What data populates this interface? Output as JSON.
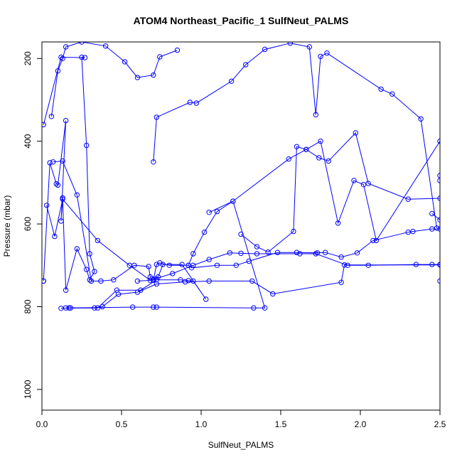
{
  "chart_data": {
    "type": "line",
    "title": "ATOM4 Northeast_Pacific_1 SulfNeut_PALMS",
    "xlabel": "SulfNeut_PALMS",
    "ylabel": "Pressure (mbar)",
    "xlim": [
      0,
      2.5
    ],
    "ylim": [
      1050,
      160
    ],
    "y_reversed": true,
    "grid": false,
    "x_ticks": [
      "0.0",
      "0.5",
      "1.0",
      "1.5",
      "2.0",
      "2.5"
    ],
    "x_tick_values": [
      0,
      0.5,
      1.0,
      1.5,
      2.0,
      2.5
    ],
    "y_ticks": [
      "200",
      "400",
      "600",
      "800",
      "1000"
    ],
    "y_tick_values": [
      200,
      400,
      600,
      800,
      1000
    ],
    "series_color": "#0000ff",
    "marker": "open-circle",
    "series": [
      {
        "x": [
          0.01,
          0.01,
          0.05,
          0.09,
          0.1,
          0.15,
          0.12,
          0.13,
          0.15,
          0.22,
          0.28,
          0.3,
          0.33,
          0.3,
          0.28,
          0.25,
          0.27,
          0.12,
          0.01
        ],
        "y": [
          738,
          738,
          452,
          503,
          506,
          350,
          593,
          537,
          760,
          660,
          710,
          735,
          715,
          672,
          410,
          197,
          198,
          197,
          360
        ]
      },
      {
        "x": [
          0.15,
          0.35,
          0.47,
          0.62,
          0.72,
          0.7,
          0.87,
          0.92,
          0.95,
          1.03,
          0.88,
          0.76,
          0.73,
          0.68,
          0.67,
          0.58,
          0.45,
          0.37,
          0.31,
          0.22,
          0.13,
          0.07
        ],
        "y": [
          803,
          803,
          760,
          760,
          735,
          735,
          735,
          737,
          738,
          782,
          698,
          698,
          728,
          728,
          703,
          700,
          735,
          738,
          738,
          530,
          448,
          450
        ]
      },
      {
        "x": [
          0.03,
          0.08,
          0.13,
          0.35,
          0.55,
          0.68,
          0.82,
          0.95,
          1.05,
          1.18,
          1.25,
          1.35,
          1.62,
          1.72,
          1.92,
          2.05,
          2.35,
          2.45,
          2.5,
          2.5
        ],
        "y": [
          555,
          630,
          540,
          640,
          700,
          736,
          720,
          700,
          686,
          670,
          671,
          672,
          672,
          672,
          700,
          700,
          698,
          698,
          698,
          738
        ]
      },
      {
        "x": [
          0.6,
          0.7,
          0.72,
          0.74,
          0.8,
          0.92,
          0.94,
          1.1,
          1.22,
          1.3,
          1.48,
          1.6,
          1.73,
          1.78,
          1.88,
          1.98,
          2.08,
          2.3,
          2.33,
          2.45,
          2.5
        ],
        "y": [
          738,
          736,
          698,
          694,
          700,
          700,
          706,
          700,
          700,
          690,
          669,
          669,
          670,
          669,
          680,
          670,
          640,
          620,
          618,
          612,
          612
        ]
      },
      {
        "x": [
          0.7,
          0.72,
          0.93,
          0.97,
          1.19,
          1.28,
          1.4,
          1.56,
          1.68,
          1.72,
          1.75,
          1.79,
          2.13,
          2.2,
          2.38,
          2.48
        ],
        "y": [
          450,
          342,
          306,
          308,
          255,
          215,
          178,
          163,
          172,
          336,
          195,
          187,
          274,
          286,
          346,
          610
        ]
      },
      {
        "x": [
          0.85,
          0.74,
          0.7,
          0.6,
          0.52,
          0.4,
          0.25,
          0.15,
          0.13,
          0.1,
          0.06
        ],
        "y": [
          180,
          196,
          240,
          246,
          208,
          170,
          160,
          172,
          200,
          230,
          340
        ]
      },
      {
        "x": [
          1.25,
          1.35,
          1.42,
          1.58,
          1.6,
          1.66,
          1.74,
          1.8,
          1.97,
          2.05,
          2.3,
          2.5,
          2.5,
          2.5
        ],
        "y": [
          625,
          655,
          668,
          618,
          413,
          420,
          440,
          448,
          380,
          502,
          540,
          538,
          483,
          495
        ]
      },
      {
        "x": [
          1.05,
          1.2,
          1.55,
          1.66,
          1.75,
          1.86,
          1.96,
          2.02,
          2.1,
          2.5,
          2.5,
          2.45
        ],
        "y": [
          572,
          545,
          443,
          420,
          400,
          598,
          495,
          505,
          640,
          400,
          590,
          575
        ]
      },
      {
        "x": [
          0.17,
          0.33,
          0.38,
          0.48,
          0.6,
          0.72,
          0.9,
          1.05,
          1.32,
          1.45,
          1.88,
          1.9,
          2.5
        ],
        "y": [
          803,
          803,
          800,
          770,
          765,
          745,
          740,
          738,
          738,
          769,
          741,
          699,
          699
        ]
      },
      {
        "x": [
          0.12,
          0.18,
          0.57,
          0.7,
          0.72,
          1.33,
          1.4,
          1.2,
          1.1,
          1.02,
          0.95,
          0.92
        ],
        "y": [
          804,
          803,
          801,
          801,
          801,
          803,
          803,
          545,
          570,
          620,
          672,
          700
        ]
      }
    ]
  }
}
